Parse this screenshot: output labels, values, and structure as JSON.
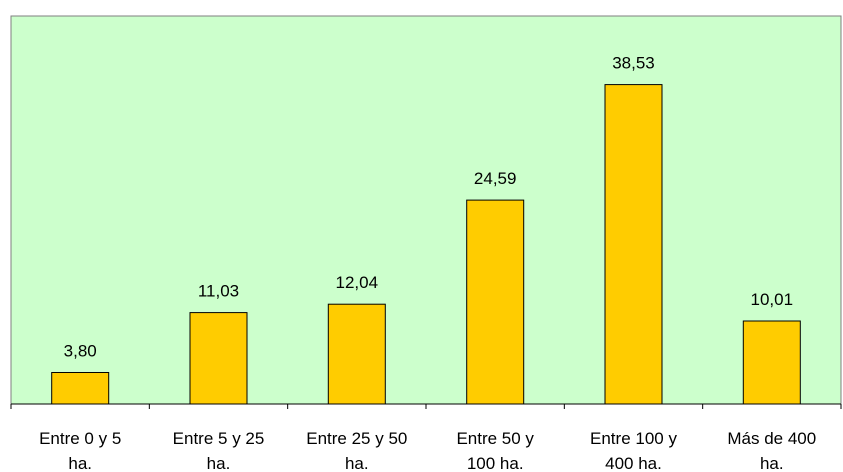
{
  "colors": {
    "plot_background": "#ccffcc",
    "bar_fill": "#ffcc00",
    "bar_stroke": "#000000",
    "axis": "#000000",
    "plot_border": "#7f7f7f"
  },
  "chart_data": {
    "type": "bar",
    "categories": [
      [
        "Entre 0 y 5",
        "ha."
      ],
      [
        "Entre 5 y 25",
        "ha."
      ],
      [
        "Entre 25 y 50",
        "ha."
      ],
      [
        "Entre 50 y",
        "100 ha."
      ],
      [
        "Entre 100 y",
        "400 ha."
      ],
      [
        "Más de 400",
        "ha."
      ]
    ],
    "values": [
      3.8,
      11.03,
      12.04,
      24.59,
      38.53,
      10.01
    ],
    "value_labels": [
      "3,80",
      "11,03",
      "12,04",
      "24,59",
      "38,53",
      "10,01"
    ],
    "title": "",
    "xlabel": "",
    "ylabel": "",
    "ylim": [
      0,
      45
    ],
    "grid": false,
    "legend": "none"
  }
}
